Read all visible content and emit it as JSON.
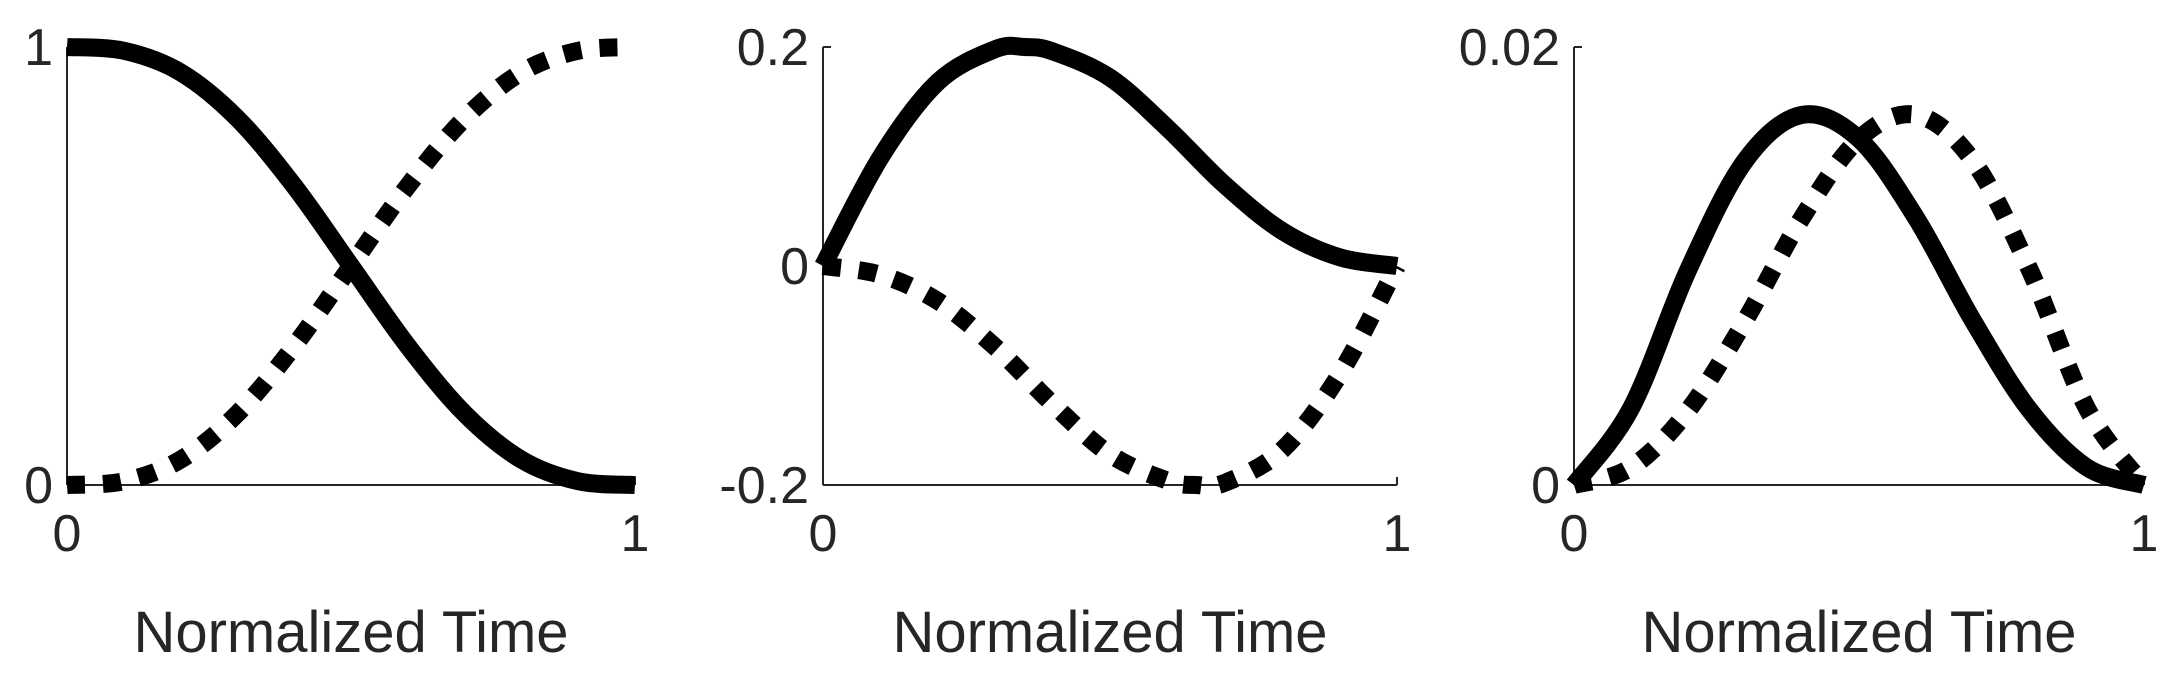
{
  "chart_data": [
    {
      "type": "line",
      "xlabel": "Normalized Time",
      "ylabel": "",
      "xlim": [
        0,
        1
      ],
      "ylim": [
        0,
        1
      ],
      "x_ticks": [
        "0",
        "1"
      ],
      "y_ticks": [
        "0",
        "1"
      ],
      "grid": false,
      "series": [
        {
          "style": "solid",
          "x": [
            0,
            0.1,
            0.2,
            0.3,
            0.4,
            0.5,
            0.6,
            0.7,
            0.8,
            0.9,
            1.0
          ],
          "y": [
            1.0,
            0.9914,
            0.9421,
            0.8369,
            0.6826,
            0.5,
            0.3174,
            0.1631,
            0.0579,
            0.0086,
            0.0
          ]
        },
        {
          "style": "dotted",
          "x": [
            0,
            0.1,
            0.2,
            0.3,
            0.4,
            0.5,
            0.6,
            0.7,
            0.8,
            0.9,
            1.0
          ],
          "y": [
            0.0,
            0.0086,
            0.0579,
            0.1631,
            0.3174,
            0.5,
            0.6826,
            0.8369,
            0.9421,
            0.9914,
            1.0
          ]
        }
      ]
    },
    {
      "type": "line",
      "xlabel": "Normalized Time",
      "ylabel": "",
      "xlim": [
        0,
        1
      ],
      "ylim": [
        -0.2,
        0.2
      ],
      "x_ticks": [
        "0",
        "1"
      ],
      "y_ticks": [
        "0.2",
        "0",
        "-0.2"
      ],
      "grid": false,
      "series": [
        {
          "style": "solid",
          "x": [
            0,
            0.1,
            0.2,
            0.3,
            0.35,
            0.4,
            0.5,
            0.6,
            0.7,
            0.8,
            0.9,
            1.0
          ],
          "y": [
            0.0,
            0.099,
            0.168,
            0.198,
            0.2,
            0.196,
            0.172,
            0.126,
            0.074,
            0.032,
            0.008,
            0.0
          ]
        },
        {
          "style": "dotted",
          "x": [
            0,
            0.1,
            0.2,
            0.3,
            0.4,
            0.5,
            0.6,
            0.65,
            0.7,
            0.8,
            0.9,
            1.0
          ],
          "y": [
            0.0,
            -0.008,
            -0.032,
            -0.074,
            -0.126,
            -0.172,
            -0.196,
            -0.2,
            -0.198,
            -0.168,
            -0.099,
            0.0
          ]
        }
      ]
    },
    {
      "type": "line",
      "xlabel": "Normalized Time",
      "ylabel": "",
      "xlim": [
        0,
        1
      ],
      "ylim": [
        0,
        0.02
      ],
      "x_ticks": [
        "0",
        "1"
      ],
      "y_ticks": [
        "0.02",
        "0"
      ],
      "grid": false,
      "series": [
        {
          "style": "solid",
          "x": [
            0,
            0.1,
            0.2,
            0.3,
            0.4,
            0.5,
            0.6,
            0.7,
            0.8,
            0.9,
            1.0
          ],
          "y": [
            0.0,
            0.0035,
            0.0098,
            0.0148,
            0.0169,
            0.0158,
            0.0122,
            0.0075,
            0.0034,
            0.0008,
            0.0
          ]
        },
        {
          "style": "dotted",
          "x": [
            0,
            0.1,
            0.2,
            0.3,
            0.4,
            0.5,
            0.6,
            0.7,
            0.8,
            0.9,
            1.0
          ],
          "y": [
            0.0,
            0.0008,
            0.0034,
            0.0075,
            0.0122,
            0.0158,
            0.0169,
            0.0148,
            0.0098,
            0.0035,
            0.0
          ]
        }
      ]
    }
  ]
}
